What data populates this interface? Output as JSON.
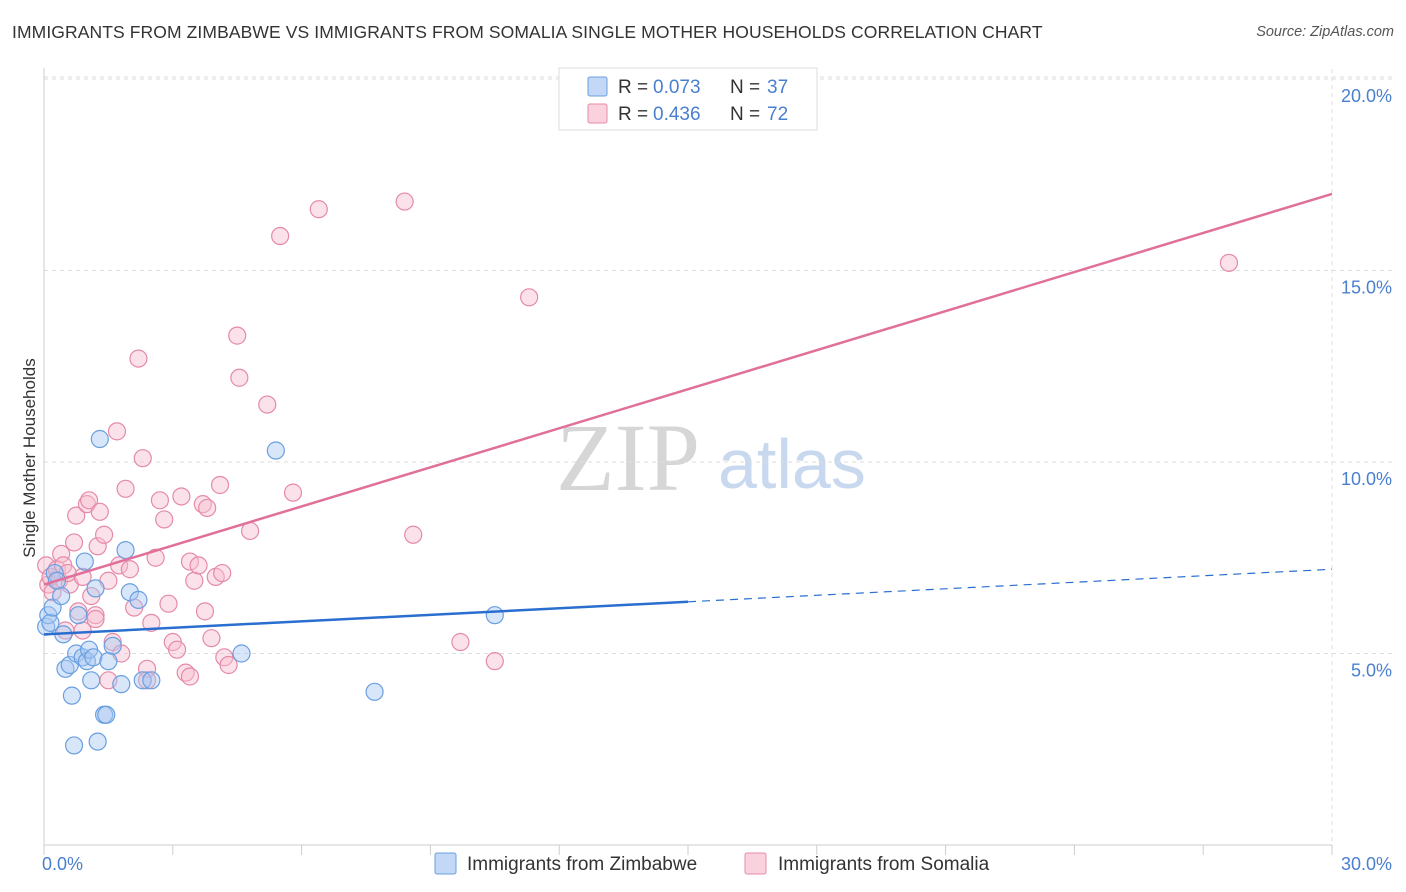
{
  "title": "IMMIGRANTS FROM ZIMBABWE VS IMMIGRANTS FROM SOMALIA SINGLE MOTHER HOUSEHOLDS CORRELATION CHART",
  "source": "Source: ZipAtlas.com",
  "watermark": {
    "zip": "ZIP",
    "atlas": "atlas"
  },
  "colors": {
    "zimbabwe_fill": "#a9c8f2",
    "zimbabwe_stroke": "#6a9fe0",
    "zimbabwe_line": "#2a6fcf",
    "somalia_fill": "#f6bfd0",
    "somalia_stroke": "#e58aa8",
    "somalia_line": "#e0709a",
    "tick_label": "#4a7fd0",
    "grid": "#dddddd"
  },
  "legend_box": {
    "rows": [
      {
        "r_label": "R = ",
        "r_value": "0.073",
        "n_label": "N = ",
        "n_value": "37"
      },
      {
        "r_label": "R = ",
        "r_value": "0.436",
        "n_label": "N = ",
        "n_value": "72"
      }
    ]
  },
  "chart_data": {
    "type": "scatter",
    "title": "IMMIGRANTS FROM ZIMBABWE VS IMMIGRANTS FROM SOMALIA SINGLE MOTHER HOUSEHOLDS CORRELATION CHART",
    "xlabel": "",
    "ylabel": "Single Mother Households",
    "xlim": [
      0,
      30
    ],
    "ylim": [
      0,
      20
    ],
    "x_ticks": [
      0,
      30
    ],
    "x_tick_labels": [
      "0.0%",
      "30.0%"
    ],
    "y_ticks": [
      5,
      10,
      15,
      20
    ],
    "y_tick_labels": [
      "5.0%",
      "10.0%",
      "15.0%",
      "20.0%"
    ],
    "grid": true,
    "legend_position": "bottom-center",
    "series": [
      {
        "name": "Immigrants from Zimbabwe",
        "R": 0.073,
        "N": 37,
        "trend": {
          "x0": 0,
          "y0": 5.5,
          "x1": 15,
          "y1": 6.35,
          "dash_to_x": 30,
          "dash_to_y": 7.2
        },
        "points": [
          [
            0.05,
            5.7
          ],
          [
            0.1,
            6.0
          ],
          [
            0.15,
            5.8
          ],
          [
            0.2,
            6.2
          ],
          [
            0.25,
            7.1
          ],
          [
            0.3,
            6.9
          ],
          [
            0.4,
            6.5
          ],
          [
            0.45,
            5.5
          ],
          [
            0.5,
            4.6
          ],
          [
            0.6,
            4.7
          ],
          [
            0.65,
            3.9
          ],
          [
            0.7,
            2.6
          ],
          [
            0.75,
            5.0
          ],
          [
            0.8,
            6.0
          ],
          [
            0.9,
            4.9
          ],
          [
            0.95,
            7.4
          ],
          [
            1.0,
            4.8
          ],
          [
            1.05,
            5.1
          ],
          [
            1.1,
            4.3
          ],
          [
            1.15,
            4.9
          ],
          [
            1.2,
            6.7
          ],
          [
            1.25,
            2.7
          ],
          [
            1.3,
            10.6
          ],
          [
            1.4,
            3.4
          ],
          [
            1.45,
            3.4
          ],
          [
            1.5,
            4.8
          ],
          [
            1.6,
            5.2
          ],
          [
            1.8,
            4.2
          ],
          [
            1.9,
            7.7
          ],
          [
            2.0,
            6.6
          ],
          [
            2.2,
            6.4
          ],
          [
            2.3,
            4.3
          ],
          [
            2.5,
            4.3
          ],
          [
            4.6,
            5.0
          ],
          [
            5.4,
            10.3
          ],
          [
            7.7,
            4.0
          ],
          [
            10.5,
            6.0
          ]
        ]
      },
      {
        "name": "Immigrants from Somalia",
        "R": 0.436,
        "N": 72,
        "trend": {
          "x0": 0,
          "y0": 6.8,
          "x1": 30,
          "y1": 17.0
        },
        "points": [
          [
            0.05,
            7.3
          ],
          [
            0.1,
            6.8
          ],
          [
            0.15,
            7.0
          ],
          [
            0.2,
            6.6
          ],
          [
            0.3,
            7.2
          ],
          [
            0.35,
            6.9
          ],
          [
            0.4,
            7.6
          ],
          [
            0.45,
            7.3
          ],
          [
            0.5,
            5.6
          ],
          [
            0.6,
            6.8
          ],
          [
            0.7,
            7.9
          ],
          [
            0.75,
            8.6
          ],
          [
            0.8,
            6.1
          ],
          [
            0.9,
            7.0
          ],
          [
            1.0,
            8.9
          ],
          [
            1.05,
            9.0
          ],
          [
            1.1,
            6.5
          ],
          [
            1.2,
            6.0
          ],
          [
            1.25,
            7.8
          ],
          [
            1.3,
            8.7
          ],
          [
            1.4,
            8.1
          ],
          [
            1.5,
            6.9
          ],
          [
            1.6,
            5.3
          ],
          [
            1.7,
            10.8
          ],
          [
            1.75,
            7.3
          ],
          [
            1.8,
            5.0
          ],
          [
            1.9,
            9.3
          ],
          [
            2.0,
            7.2
          ],
          [
            2.2,
            12.7
          ],
          [
            2.3,
            10.1
          ],
          [
            2.4,
            4.6
          ],
          [
            2.5,
            5.8
          ],
          [
            2.6,
            7.5
          ],
          [
            2.7,
            9.0
          ],
          [
            2.8,
            8.5
          ],
          [
            2.9,
            6.3
          ],
          [
            3.0,
            5.3
          ],
          [
            3.1,
            5.1
          ],
          [
            3.2,
            9.1
          ],
          [
            3.3,
            4.5
          ],
          [
            3.4,
            7.4
          ],
          [
            3.5,
            6.9
          ],
          [
            3.6,
            7.3
          ],
          [
            3.7,
            8.9
          ],
          [
            3.75,
            6.1
          ],
          [
            3.8,
            8.8
          ],
          [
            3.9,
            5.4
          ],
          [
            4.0,
            7.0
          ],
          [
            4.1,
            9.4
          ],
          [
            4.15,
            7.1
          ],
          [
            4.2,
            4.9
          ],
          [
            4.3,
            4.7
          ],
          [
            4.5,
            13.3
          ],
          [
            4.55,
            12.2
          ],
          [
            4.8,
            8.2
          ],
          [
            5.2,
            11.5
          ],
          [
            5.5,
            15.9
          ],
          [
            5.8,
            9.2
          ],
          [
            6.4,
            16.6
          ],
          [
            8.4,
            16.8
          ],
          [
            8.6,
            8.1
          ],
          [
            9.7,
            5.3
          ],
          [
            10.5,
            4.8
          ],
          [
            11.3,
            14.3
          ],
          [
            27.6,
            15.2
          ],
          [
            1.5,
            4.3
          ],
          [
            2.4,
            4.3
          ],
          [
            1.2,
            5.9
          ],
          [
            0.9,
            5.6
          ],
          [
            2.1,
            6.2
          ],
          [
            3.4,
            4.4
          ],
          [
            0.55,
            7.1
          ]
        ]
      }
    ]
  }
}
